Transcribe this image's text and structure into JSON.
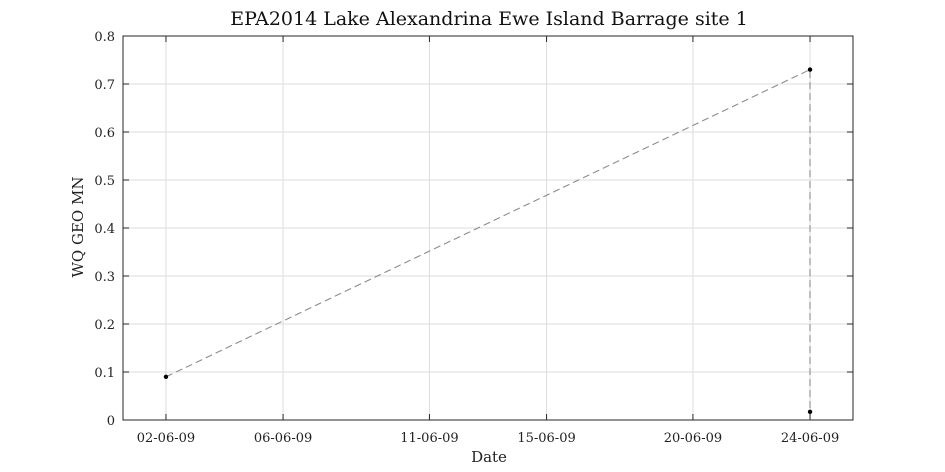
{
  "chart_data": {
    "type": "line",
    "title": "EPA2014 Lake Alexandrina Ewe Island Barrage site 1",
    "xlabel": "Date",
    "ylabel": "WQ GEO MN",
    "x_tick_labels": [
      "02-06-09",
      "06-06-09",
      "11-06-09",
      "15-06-09",
      "20-06-09",
      "24-06-09"
    ],
    "y_tick_labels": [
      "0",
      "0.1",
      "0.2",
      "0.3",
      "0.4",
      "0.5",
      "0.6",
      "0.7",
      "0.8"
    ],
    "ylim": [
      0,
      0.8
    ],
    "grid": true,
    "series": [
      {
        "x": [
          "02-06-09",
          "24-06-09",
          "24-06-09"
        ],
        "values": [
          0.09,
          0.73,
          0.017
        ],
        "line_style": "dashed",
        "line_color": "#8c8c8c",
        "marker_color": "#000000"
      }
    ]
  }
}
